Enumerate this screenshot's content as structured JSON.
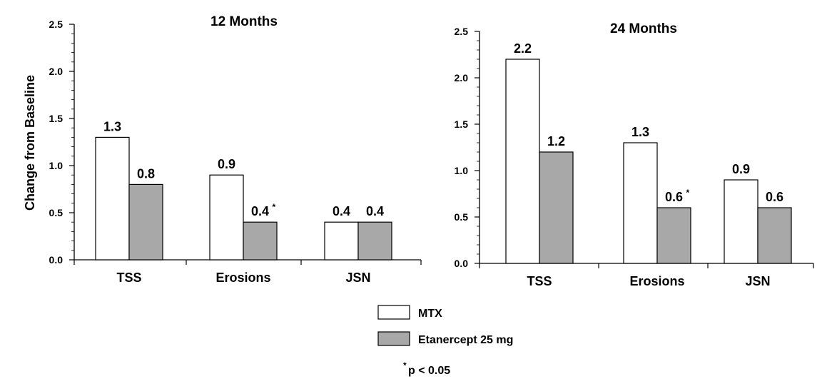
{
  "ylabel": "Change from Baseline",
  "legend": [
    {
      "label": "MTX",
      "color": "#ffffff"
    },
    {
      "label": "Etanercept 25 mg",
      "color": "#a8a8a8"
    }
  ],
  "footnote": {
    "symbol": "*",
    "text": "p < 0.05"
  },
  "chart_data": [
    {
      "type": "bar",
      "title": "12 Months",
      "categories": [
        "TSS",
        "Erosions",
        "JSN"
      ],
      "ylim": [
        0,
        2.5
      ],
      "yticks": [
        "0.0",
        "0.5",
        "1.0",
        "1.5",
        "2.0",
        "2.5"
      ],
      "series": [
        {
          "name": "MTX",
          "values": [
            1.3,
            0.9,
            0.4
          ],
          "labels": [
            "1.3",
            "0.9",
            "0.4"
          ],
          "marks": [
            "",
            "",
            ""
          ]
        },
        {
          "name": "Etanercept 25 mg",
          "values": [
            0.8,
            0.4,
            0.4
          ],
          "labels": [
            "0.8",
            "0.4",
            "0.4"
          ],
          "marks": [
            "",
            "*",
            ""
          ]
        }
      ]
    },
    {
      "type": "bar",
      "title": "24 Months",
      "categories": [
        "TSS",
        "Erosions",
        "JSN"
      ],
      "ylim": [
        0,
        2.5
      ],
      "yticks": [
        "0.0",
        "0.5",
        "1.0",
        "1.5",
        "2.0",
        "2.5"
      ],
      "series": [
        {
          "name": "MTX",
          "values": [
            2.2,
            1.3,
            0.9
          ],
          "labels": [
            "2.2",
            "1.3",
            "0.9"
          ],
          "marks": [
            "",
            "",
            ""
          ]
        },
        {
          "name": "Etanercept 25 mg",
          "values": [
            1.2,
            0.6,
            0.6
          ],
          "labels": [
            "1.2",
            "0.6",
            "0.6"
          ],
          "marks": [
            "",
            "*",
            ""
          ]
        }
      ]
    }
  ]
}
